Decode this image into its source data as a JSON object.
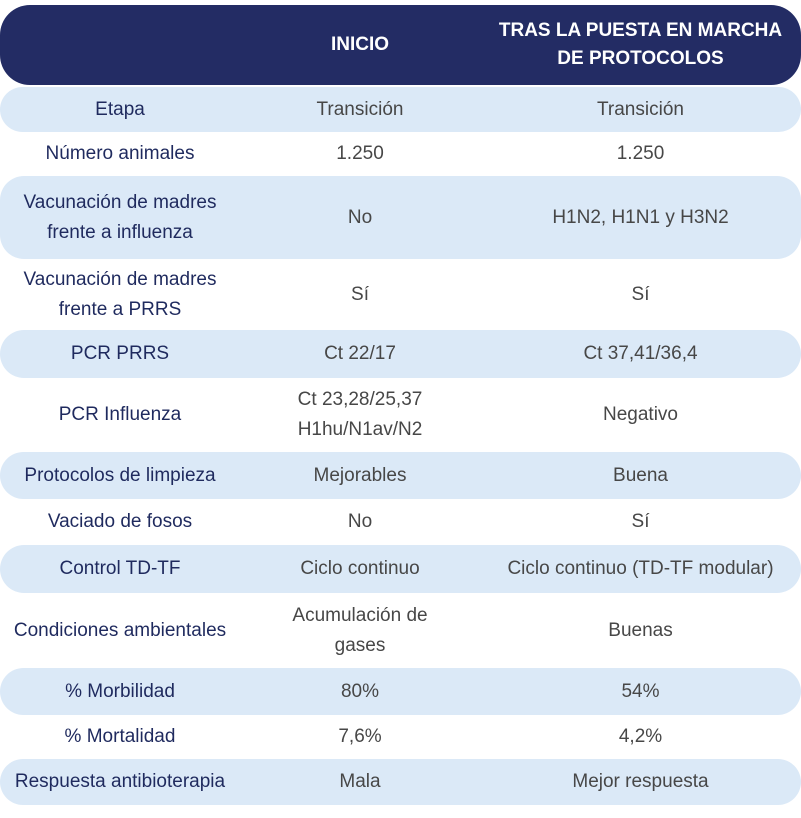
{
  "table": {
    "header": [
      "INICIO",
      [
        "TRAS LA PUESTA EN MARCHA",
        "DE PROTOCOLOS"
      ]
    ],
    "rows": [
      [
        [
          "Etapa"
        ],
        [
          "Transición"
        ],
        [
          "Transición"
        ]
      ],
      [
        [
          "Número animales"
        ],
        [
          "1.250"
        ],
        [
          "1.250"
        ]
      ],
      [
        [
          "Vacunación de madres",
          "frente a influenza"
        ],
        [
          "No"
        ],
        [
          "H1N2, H1N1 y H3N2"
        ]
      ],
      [
        [
          "Vacunación de madres",
          "frente a PRRS"
        ],
        [
          "Sí"
        ],
        [
          "Sí"
        ]
      ],
      [
        [
          "PCR PRRS"
        ],
        [
          "Ct 22/17"
        ],
        [
          "Ct 37,41/36,4"
        ]
      ],
      [
        [
          "PCR Influenza"
        ],
        [
          "Ct 23,28/25,37",
          "H1hu/N1av/N2"
        ],
        [
          "Negativo"
        ]
      ],
      [
        [
          "Protocolos de limpieza"
        ],
        [
          "Mejorables"
        ],
        [
          "Buena"
        ]
      ],
      [
        [
          "Vaciado de fosos"
        ],
        [
          "No"
        ],
        [
          "Sí"
        ]
      ],
      [
        [
          "Control TD-TF"
        ],
        [
          "Ciclo continuo"
        ],
        [
          "Ciclo continuo (TD-TF modular)"
        ]
      ],
      [
        [
          "Condiciones ambientales"
        ],
        [
          "Acumulación de",
          "gases"
        ],
        [
          "Buenas"
        ]
      ],
      [
        [
          "% Morbilidad"
        ],
        [
          "80%"
        ],
        [
          "54%"
        ]
      ],
      [
        [
          "% Mortalidad"
        ],
        [
          "7,6%"
        ],
        [
          "4,2%"
        ]
      ],
      [
        [
          "Respuesta antibioterapia"
        ],
        [
          "Mala"
        ],
        [
          "Mejor respuesta"
        ]
      ]
    ]
  }
}
